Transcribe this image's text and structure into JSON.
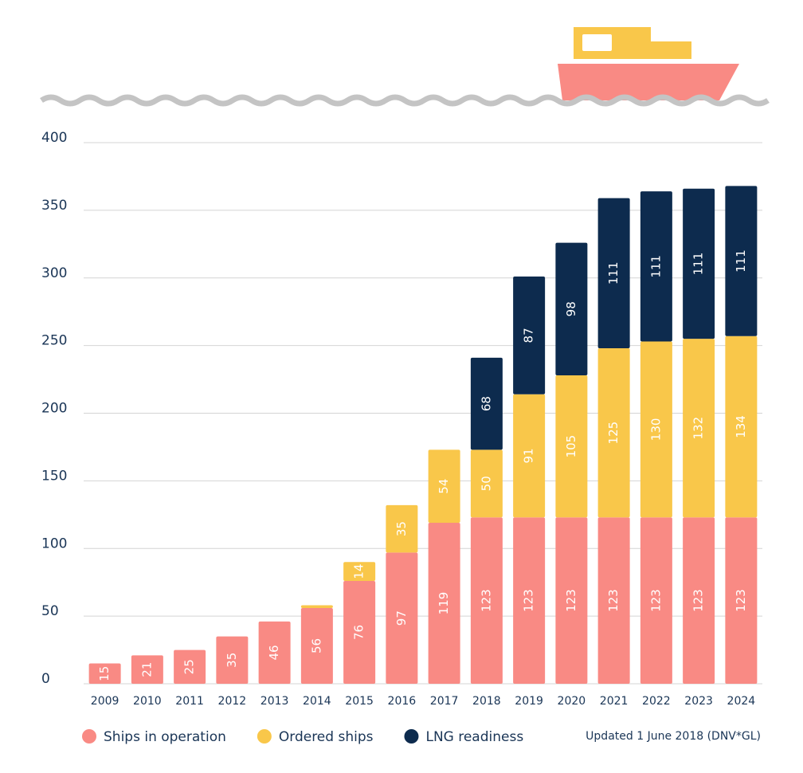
{
  "chart_data": {
    "type": "stacked_bar",
    "categories": [
      "2009",
      "2010",
      "2011",
      "2012",
      "2013",
      "2014",
      "2015",
      "2016",
      "2017",
      "2018",
      "2019",
      "2020",
      "2021",
      "2022",
      "2023",
      "2024"
    ],
    "series": [
      {
        "name": "Ships in operation",
        "color": "#f98a84",
        "values": [
          15,
          21,
          25,
          35,
          46,
          56,
          76,
          97,
          119,
          123,
          123,
          123,
          123,
          123,
          123,
          123
        ]
      },
      {
        "name": "Ordered ships",
        "color": "#f9c74a",
        "values": [
          0,
          0,
          0,
          0,
          0,
          2,
          14,
          35,
          54,
          50,
          91,
          105,
          125,
          130,
          132,
          134
        ]
      },
      {
        "name": "LNG readiness",
        "color": "#0d2b4e",
        "values": [
          0,
          0,
          0,
          0,
          0,
          0,
          0,
          0,
          0,
          68,
          87,
          98,
          111,
          111,
          111,
          111
        ]
      }
    ],
    "ylim": [
      0,
      400
    ],
    "yticks": [
      0,
      50,
      100,
      150,
      200,
      250,
      300,
      350,
      400
    ],
    "grid": true,
    "note": "Updated 1 June 2018 (DNV*GL)"
  }
}
